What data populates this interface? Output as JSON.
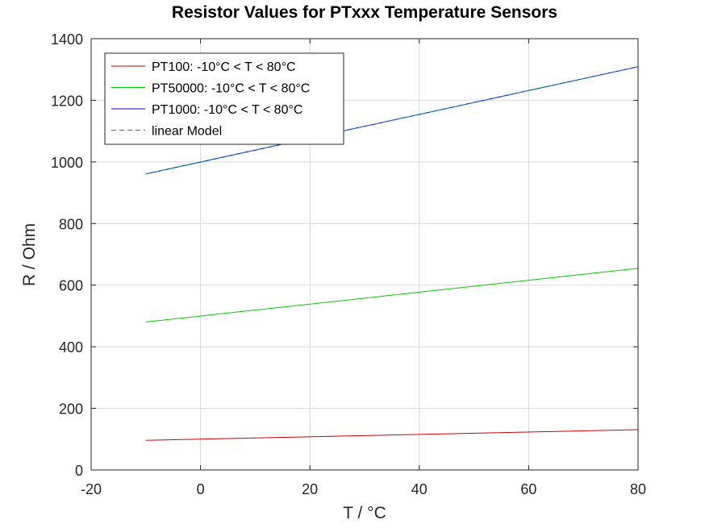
{
  "chart_data": {
    "type": "line",
    "title": "Resistor Values for PTxxx Temperature Sensors",
    "xlabel": "T / °C",
    "ylabel": "R / Ohm",
    "xlim": [
      -20,
      80
    ],
    "ylim": [
      0,
      1400
    ],
    "xticks": [
      -20,
      0,
      20,
      40,
      60,
      80
    ],
    "yticks": [
      0,
      200,
      400,
      600,
      800,
      1000,
      1200,
      1400
    ],
    "grid": true,
    "legend_position": "top-left",
    "series": [
      {
        "name": "PT100: -10°C < T < 80°C",
        "color": "#cc0000",
        "style": "solid",
        "x": [
          -10,
          80
        ],
        "y": [
          96.1,
          130.9
        ]
      },
      {
        "name": "PT50000: -10°C < T < 80°C",
        "color": "#00cc00",
        "style": "solid",
        "x": [
          -10,
          80
        ],
        "y": [
          480.4,
          654.6
        ]
      },
      {
        "name": "PT1000: -10°C < T < 80°C",
        "color": "#0000cc",
        "style": "solid",
        "x": [
          -10,
          80
        ],
        "y": [
          961,
          1309
        ]
      },
      {
        "name": "linear Model",
        "color": "#0088aa",
        "style": "dashed",
        "x": [
          -10,
          80
        ],
        "y": [
          961,
          1309
        ]
      }
    ]
  }
}
